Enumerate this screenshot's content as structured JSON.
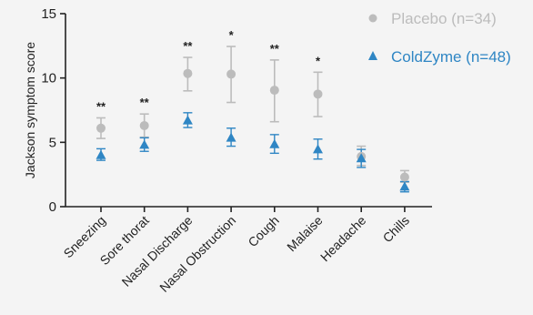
{
  "chart_data": {
    "type": "scatter",
    "categories": [
      "Sneezing",
      "Sore thorat",
      "Nasal Discharge",
      "Nasal Obstruction",
      "Cough",
      "Malaise",
      "Headache",
      "Chills"
    ],
    "ylabel": "Jackson symptom score",
    "ylim": [
      0,
      15
    ],
    "yticks": [
      0,
      5,
      10,
      15
    ],
    "grid": false,
    "legend_position": "top-right",
    "series": [
      {
        "name": "Placebo (n=34)",
        "marker": "circle",
        "color": "#bcbcbc",
        "values": [
          6.1,
          6.3,
          10.35,
          10.3,
          9.05,
          8.75,
          3.9,
          2.3
        ],
        "err_low": [
          5.3,
          5.4,
          9.0,
          8.1,
          6.6,
          7.0,
          3.2,
          1.9
        ],
        "err_high": [
          6.9,
          7.2,
          11.6,
          12.45,
          11.4,
          10.45,
          4.7,
          2.8
        ]
      },
      {
        "name": "ColdZyme (n=48)",
        "marker": "triangle",
        "color": "#2f86c4",
        "values": [
          4.0,
          4.8,
          6.7,
          5.35,
          4.85,
          4.45,
          3.75,
          1.55
        ],
        "err_low": [
          3.6,
          4.3,
          6.15,
          4.7,
          4.15,
          3.7,
          3.05,
          1.15
        ],
        "err_high": [
          4.5,
          5.35,
          7.3,
          6.1,
          5.6,
          5.25,
          4.45,
          1.95
        ]
      }
    ],
    "annotations": [
      "**",
      "**",
      "**",
      "*",
      "**",
      "*",
      "",
      ""
    ]
  }
}
